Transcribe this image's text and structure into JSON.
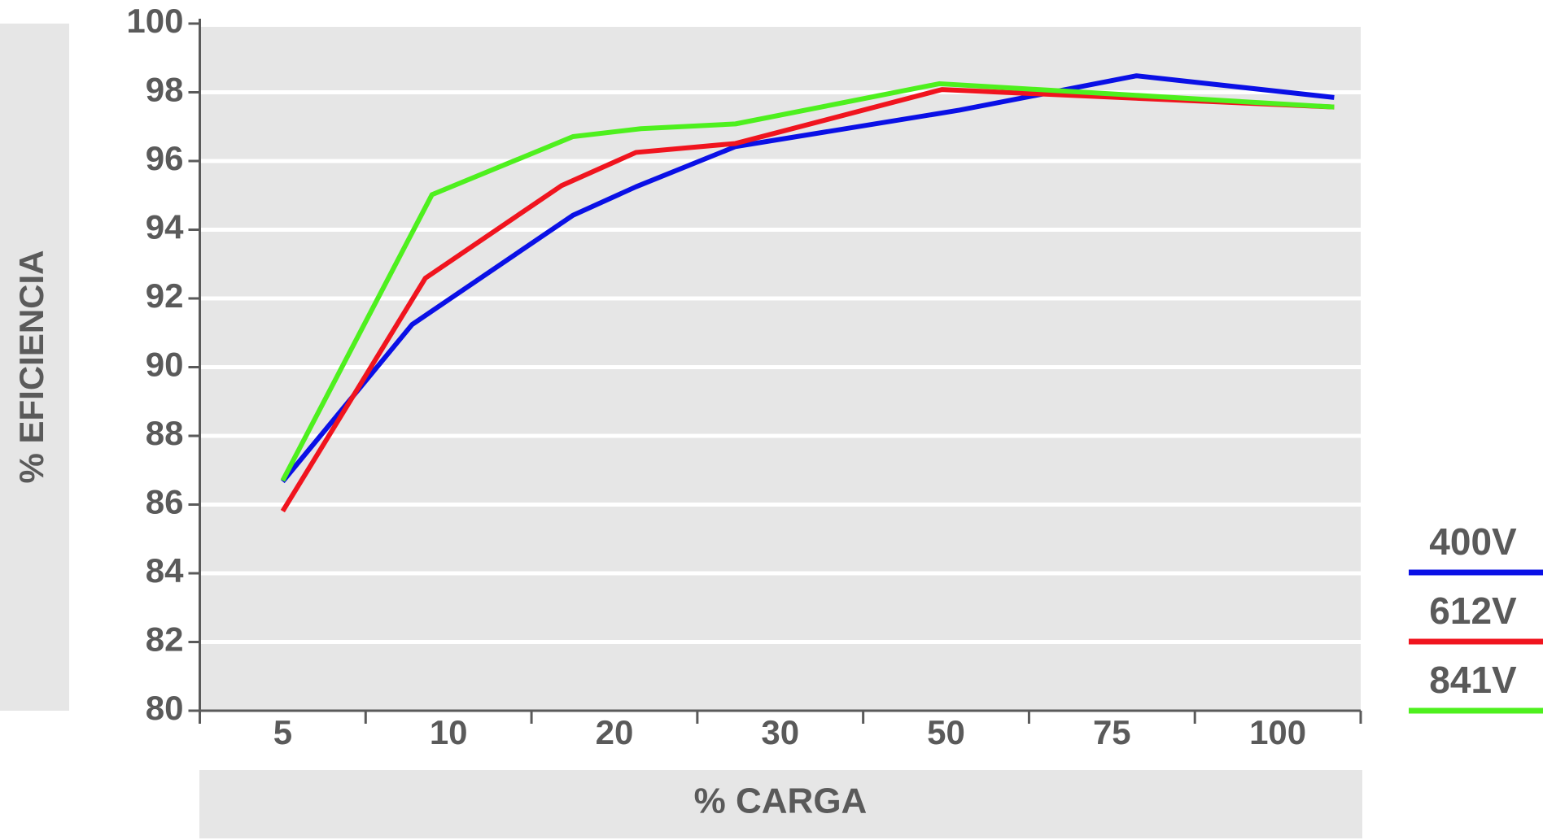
{
  "chart_data": {
    "type": "line",
    "y_axis_label": "% EFICIENCIA",
    "x_axis_label": "% CARGA",
    "xticks": [
      5,
      10,
      20,
      30,
      50,
      75,
      100
    ],
    "ylim": [
      80,
      100
    ],
    "yticks": [
      80,
      82,
      84,
      86,
      88,
      90,
      92,
      94,
      96,
      98,
      100
    ],
    "grid": true,
    "legend": "right",
    "series": [
      {
        "name": "400V",
        "color": "#0a10e6",
        "x": [
          5,
          8.9,
          17.5,
          21.3,
          27.3,
          52,
          78.7,
          108.5
        ],
        "values": [
          86.67,
          91.24,
          94.42,
          95.25,
          96.42,
          97.48,
          98.48,
          97.85
        ]
      },
      {
        "name": "612V",
        "color": "#f0141e",
        "x": [
          5,
          9.3,
          16.8,
          21.3,
          27.3,
          49.5,
          108.5
        ],
        "values": [
          85.81,
          92.59,
          95.28,
          96.25,
          96.51,
          98.08,
          97.57
        ]
      },
      {
        "name": "841V",
        "color": "#4ef01e",
        "x": [
          5,
          9.5,
          17.5,
          21.6,
          27.3,
          49.2,
          108.5
        ],
        "values": [
          86.7,
          95.02,
          96.71,
          96.94,
          97.08,
          98.25,
          97.57
        ]
      }
    ]
  }
}
